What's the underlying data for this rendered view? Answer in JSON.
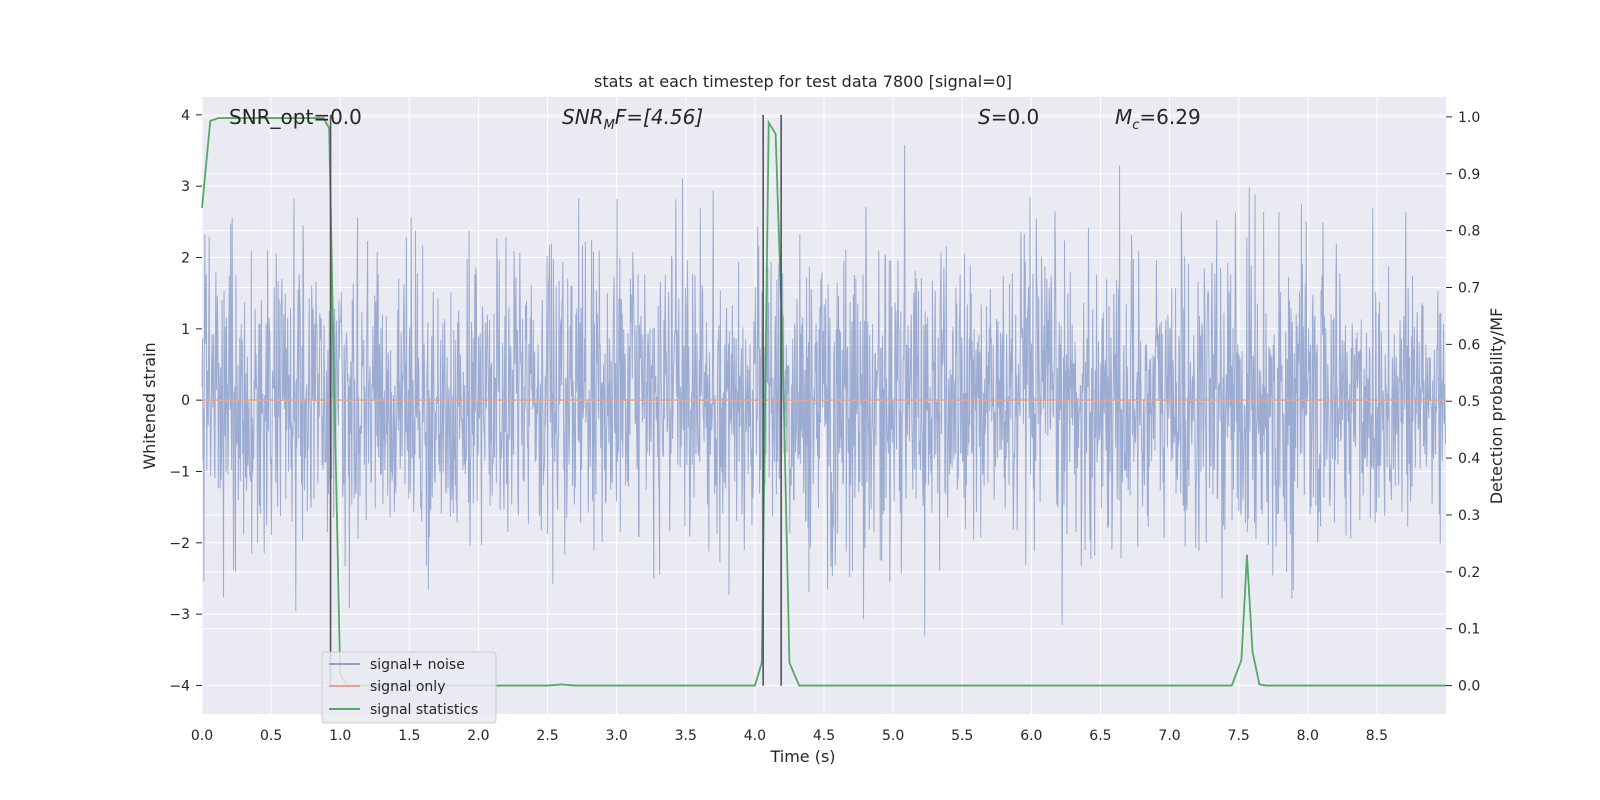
{
  "chart_data": {
    "type": "line",
    "title": "stats at each timestep for test data 7800 [signal=0]",
    "xlabel": "Time (s)",
    "ylabel": "Whitened strain",
    "ylabel_right": "Detection probability/MF",
    "xlim": [
      0.0,
      9.0
    ],
    "ylim": [
      -4.4,
      4.25
    ],
    "ylim_right": [
      -0.05,
      1.035
    ],
    "x_ticks": [
      "0.0",
      "0.5",
      "1.0",
      "1.5",
      "2.0",
      "2.5",
      "3.0",
      "3.5",
      "4.0",
      "4.5",
      "5.0",
      "5.5",
      "6.0",
      "6.5",
      "7.0",
      "7.5",
      "8.0",
      "8.5"
    ],
    "y_ticks": [
      "4",
      "3",
      "2",
      "1",
      "0",
      "−1",
      "−2",
      "−3",
      "−4"
    ],
    "y_right_ticks": [
      "1.0",
      "0.9",
      "0.8",
      "0.7",
      "0.6",
      "0.5",
      "0.4",
      "0.3",
      "0.2",
      "0.1",
      "0.0"
    ],
    "grid": true,
    "legend_placement": "lower-left",
    "annotations": {
      "snr_opt": "SNR_opt=0.0",
      "snr_mf_italic": "SNR",
      "snr_mf_sub": "M",
      "snr_mf_rest": "F=[4.56]",
      "s_italic": "S",
      "s_rest": "=0.0",
      "mc_italic": "M",
      "mc_sub": "c",
      "mc_rest": "=6.29"
    },
    "series": [
      {
        "name": "signal+ noise",
        "color": "#8da0cb",
        "axis": "left",
        "description_values": "dense whitened noise, roughly Gaussian with sigma ~1, spanning about -4 to 3.6"
      },
      {
        "name": "signal only",
        "color": "#e8a48c",
        "axis": "left",
        "x": [
          0.0,
          9.0
        ],
        "values": [
          0.0,
          0.0
        ]
      },
      {
        "name": "signal statistics",
        "color": "#55a868",
        "axis": "right",
        "x": [
          0.0,
          0.06,
          0.12,
          0.2,
          0.4,
          0.6,
          0.88,
          0.92,
          0.95,
          1.0,
          1.05,
          2.0,
          2.5,
          2.6,
          2.7,
          3.5,
          4.0,
          4.05,
          4.1,
          4.15,
          4.2,
          4.25,
          4.32,
          4.4,
          7.0,
          7.45,
          7.52,
          7.56,
          7.6,
          7.65,
          7.7,
          8.0,
          9.0
        ],
        "values": [
          0.84,
          0.993,
          0.998,
          0.998,
          0.998,
          0.998,
          0.998,
          0.98,
          0.6,
          0.02,
          0.0,
          0.0,
          0.0,
          0.002,
          0.0,
          0.0,
          0.0,
          0.04,
          0.99,
          0.97,
          0.6,
          0.04,
          0.0,
          0.0,
          0.0,
          0.0,
          0.045,
          0.23,
          0.06,
          0.002,
          0.0,
          0.0,
          0.0
        ]
      }
    ],
    "vertical_markers_x": [
      0.93,
      4.06,
      4.19
    ],
    "marker_color": "#555555"
  }
}
